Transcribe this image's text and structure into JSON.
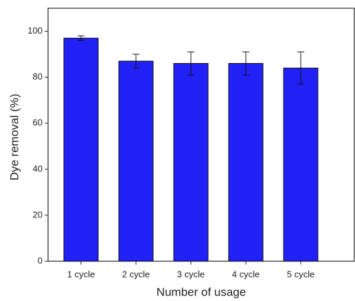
{
  "chart_data": {
    "type": "bar",
    "categories": [
      "1 cycle",
      "2 cycle",
      "3 cycle",
      "4 cycle",
      "5 cycle"
    ],
    "values": [
      97,
      87,
      86,
      86,
      84
    ],
    "errors": [
      1,
      3,
      5,
      5,
      7
    ],
    "color": "#2121f5",
    "xlabel": "Number of usage",
    "ylabel": "Dye removal (%)",
    "ylim": [
      0,
      110
    ],
    "yticks": [
      0,
      20,
      40,
      60,
      80,
      100
    ],
    "grid": false
  }
}
